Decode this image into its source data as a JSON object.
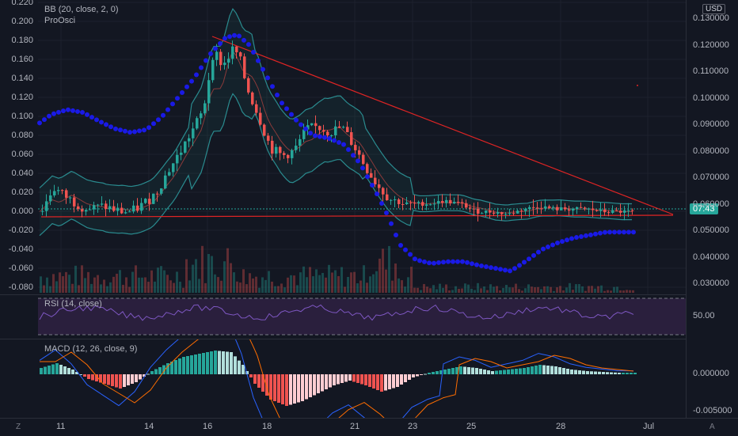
{
  "legend": {
    "bb": "BB (20, close, 2, 0)",
    "proosci": "ProOsci",
    "rsi": "RSI (14, close)",
    "macd": "MACD (12, 26, close, 9)"
  },
  "left_axis": [
    "0.220",
    "0.200",
    "0.180",
    "0.160",
    "0.140",
    "0.120",
    "0.100",
    "0.080",
    "0.060",
    "0.040",
    "0.020",
    "0.000",
    "-0.020",
    "-0.040",
    "-0.060",
    "-0.080"
  ],
  "right_axis": [
    "0.130000",
    "0.120000",
    "0.110000",
    "0.100000",
    "0.090000",
    "0.080000",
    "0.070000",
    "0.060000",
    "0.050000",
    "0.040000",
    "0.030000"
  ],
  "currency": "USD",
  "price_tag": "07:43",
  "rsi_axis": "50.00",
  "macd_axis": [
    "0.000000",
    "-0.005000"
  ],
  "x_axis": [
    "11",
    "14",
    "16",
    "18",
    "21",
    "23",
    "25",
    "28",
    "Jul"
  ],
  "corner_left": "Z",
  "corner_right": "A",
  "colors": {
    "background": "#131722",
    "up": "#26a69a",
    "down": "#ef5350",
    "band": "#2a8b8f",
    "dots": "#1a1ae6",
    "trendline": "#e02424",
    "rsi_fill": "#2a1f3d"
  }
}
